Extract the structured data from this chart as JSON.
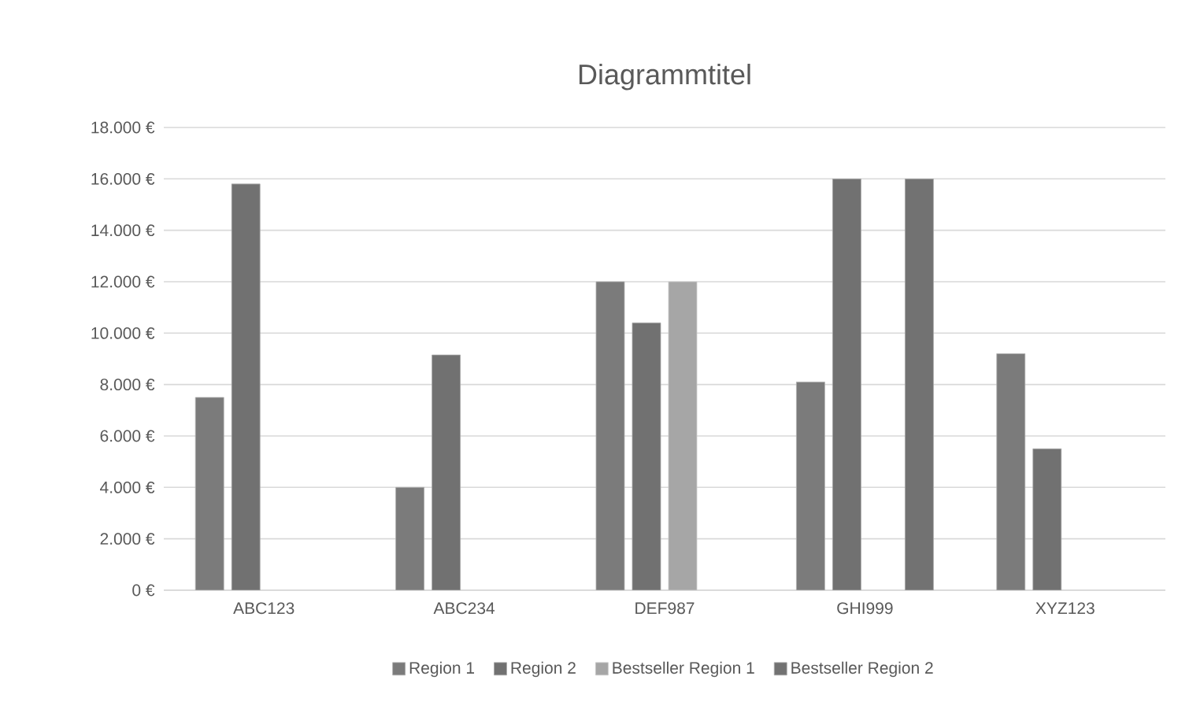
{
  "chart_data": {
    "type": "bar",
    "title": "Diagrammtitel",
    "categories": [
      "ABC123",
      "ABC234",
      "DEF987",
      "GHI999",
      "XYZ123"
    ],
    "series": [
      {
        "name": "Region 1",
        "color": "#7b7b7b",
        "values": [
          7500,
          4000,
          12000,
          8100,
          9200
        ]
      },
      {
        "name": "Region 2",
        "color": "#717171",
        "values": [
          15800,
          9150,
          10400,
          16000,
          5500
        ]
      },
      {
        "name": "Bestseller Region 1",
        "color": "#a6a6a6",
        "values": [
          null,
          null,
          12000,
          null,
          null
        ]
      },
      {
        "name": "Bestseller Region 2",
        "color": "#727272",
        "values": [
          null,
          null,
          null,
          16000,
          null
        ]
      }
    ],
    "ylim": [
      0,
      18000
    ],
    "yticks": [
      {
        "value": 0,
        "label": "0 €"
      },
      {
        "value": 2000,
        "label": "2.000 €"
      },
      {
        "value": 4000,
        "label": "4.000 €"
      },
      {
        "value": 6000,
        "label": "6.000 €"
      },
      {
        "value": 8000,
        "label": "8.000 €"
      },
      {
        "value": 10000,
        "label": "10.000 €"
      },
      {
        "value": 12000,
        "label": "12.000 €"
      },
      {
        "value": 14000,
        "label": "14.000 €"
      },
      {
        "value": 16000,
        "label": "16.000 €"
      },
      {
        "value": 18000,
        "label": "18.000 €"
      }
    ],
    "grid": "y",
    "legend": "bottom"
  }
}
